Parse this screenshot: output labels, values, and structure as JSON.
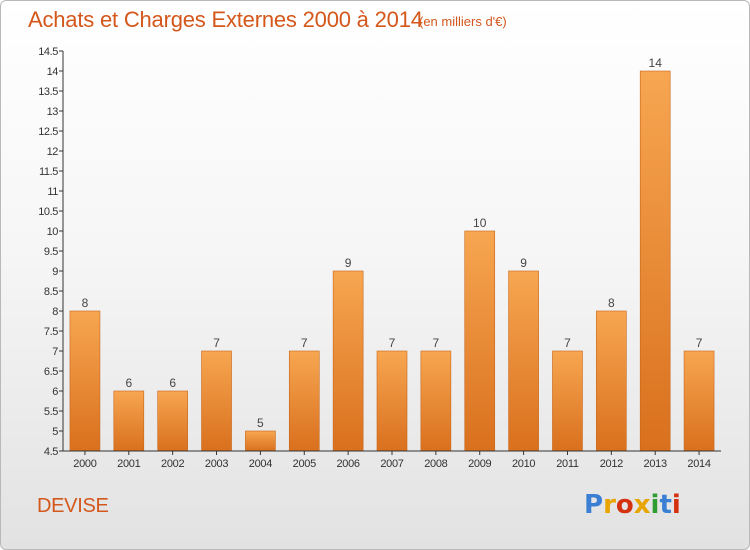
{
  "header": {
    "title": "Achats et Charges Externes 2000 à 2014",
    "unit": "(en milliers d'€)"
  },
  "footer": {
    "commune": "DEVISE",
    "logo_text": "Proxiti",
    "logo_colors": [
      "#3b7fd4",
      "#e8a500",
      "#d4320f",
      "#e8a500",
      "#2f9e32",
      "#3b7fd4",
      "#d4320f"
    ]
  },
  "colors": {
    "title": "#d4571b",
    "bar_top": "#f7a651",
    "bar_bottom": "#d9701e",
    "axis": "#333333"
  },
  "chart_data": {
    "type": "bar",
    "title": "Achats et Charges Externes 2000 à 2014",
    "subtitle": "(en milliers d'€)",
    "categories": [
      "2000",
      "2001",
      "2002",
      "2003",
      "2004",
      "2005",
      "2006",
      "2007",
      "2008",
      "2009",
      "2010",
      "2011",
      "2012",
      "2013",
      "2014"
    ],
    "values": [
      8,
      6,
      6,
      7,
      5,
      7,
      9,
      7,
      7,
      10,
      9,
      7,
      8,
      14,
      7
    ],
    "ylim": [
      4.5,
      14.5
    ],
    "yticks": [
      "4.5",
      "5",
      "5.5",
      "6",
      "6.5",
      "7",
      "7.5",
      "8",
      "8.5",
      "9",
      "9.5",
      "10",
      "10.5",
      "11",
      "11.5",
      "12",
      "12.5",
      "13",
      "13.5",
      "14",
      "14.5"
    ],
    "grid": false,
    "data_labels": true,
    "xlabel": "",
    "ylabel": ""
  }
}
